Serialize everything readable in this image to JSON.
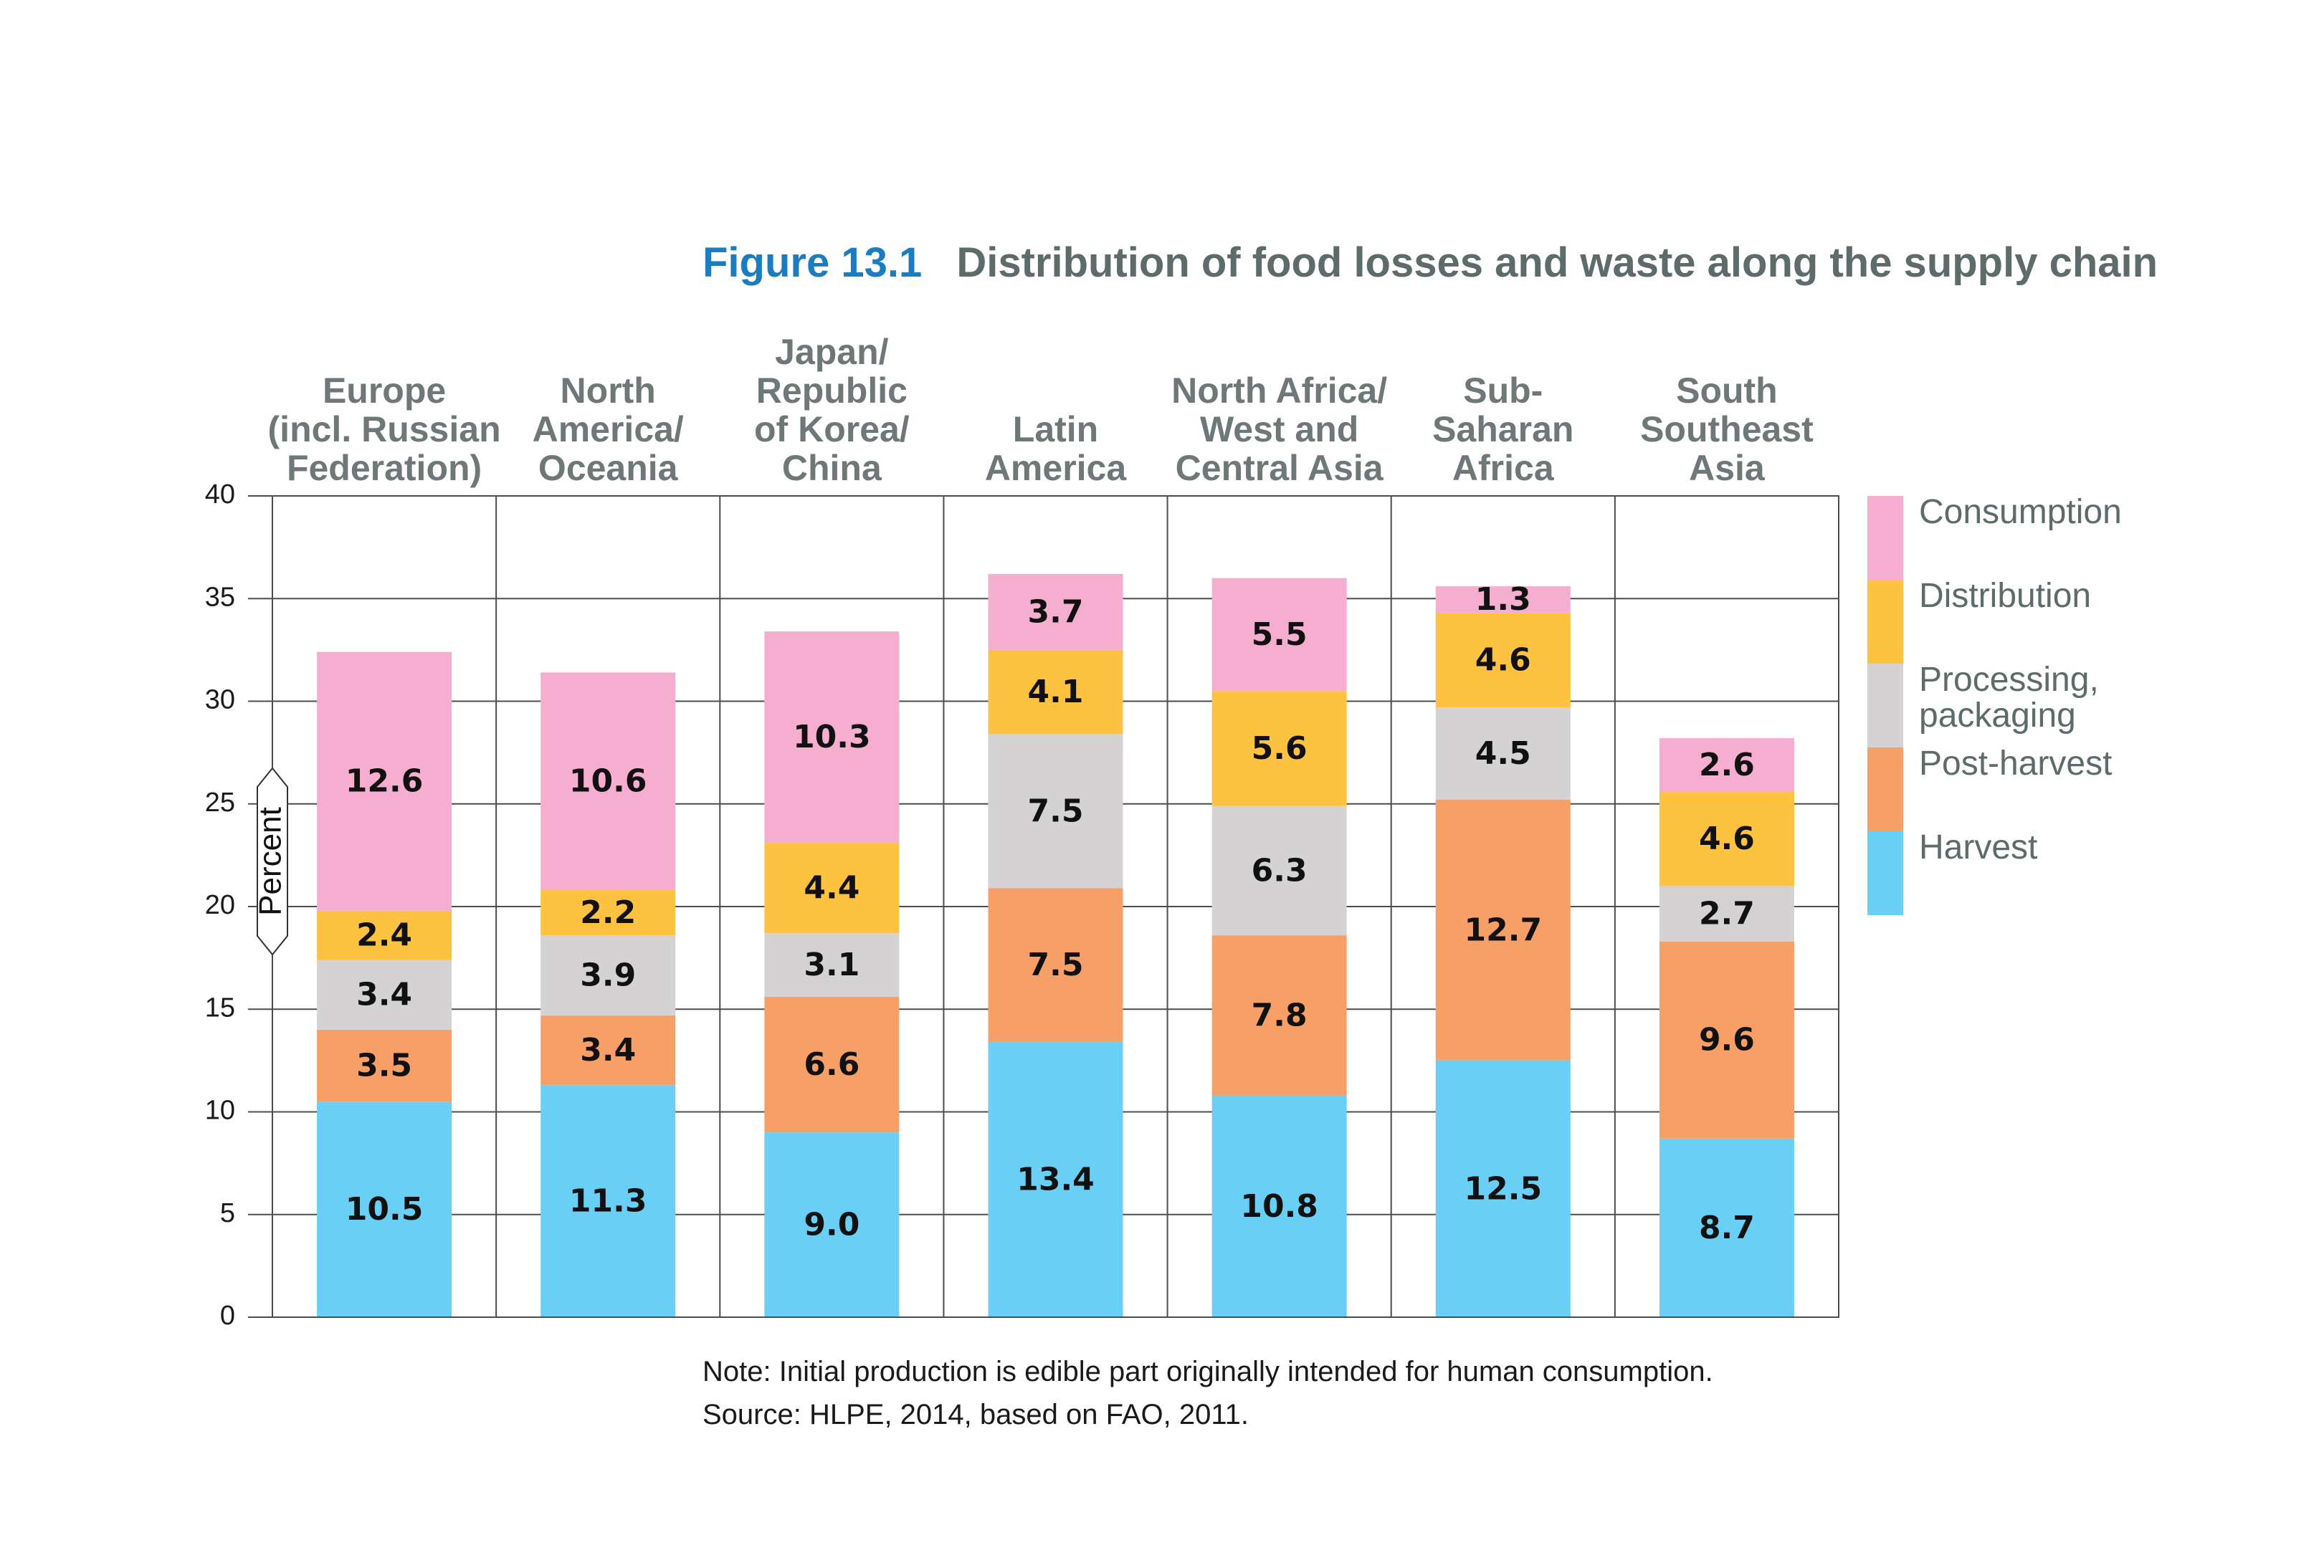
{
  "title": {
    "number": "Figure 13.1",
    "text": "Distribution of food losses and waste along the supply chain"
  },
  "note": "Note: Initial production is edible part originally intended for human consumption.",
  "source": "Source: HLPE, 2014, based on FAO, 2011.",
  "chart_data": {
    "type": "bar",
    "stacked": true,
    "title": "Distribution of food losses and waste along the supply chain",
    "ylabel": "Percent",
    "xlabel": "",
    "ylim": [
      0,
      40
    ],
    "yticks": [
      0,
      5,
      10,
      15,
      20,
      25,
      30,
      35,
      40
    ],
    "grid": true,
    "legend_position": "right",
    "categories": [
      [
        "Europe",
        "(incl. Russian",
        "Federation)"
      ],
      [
        "North",
        "America/",
        "Oceania"
      ],
      [
        "Japan/",
        "Republic",
        "of Korea/",
        "China"
      ],
      [
        "Latin",
        "America"
      ],
      [
        "North Africa/",
        "West and",
        "Central Asia"
      ],
      [
        "Sub-",
        "Saharan",
        "Africa"
      ],
      [
        "South",
        "Southeast",
        "Asia"
      ]
    ],
    "series": [
      {
        "name": "Harvest",
        "color": "#6acff4",
        "values": [
          10.5,
          11.3,
          9.0,
          13.4,
          10.8,
          12.5,
          8.7
        ],
        "labels": [
          "10.5",
          "11.3",
          "9.0",
          "13.4",
          "10.8",
          "12.5",
          "8.7"
        ]
      },
      {
        "name": "Post-harvest",
        "color": "#f6a068",
        "values": [
          3.5,
          3.4,
          6.6,
          7.5,
          7.8,
          12.7,
          9.6
        ],
        "labels": [
          "3.5",
          "3.4",
          "6.6",
          "7.5",
          "7.8",
          "12.7",
          "9.6"
        ]
      },
      {
        "name": "Processing, packaging",
        "legend_lines": [
          "Processing,",
          "packaging"
        ],
        "color": "#d4d2d3",
        "values": [
          3.4,
          3.9,
          3.1,
          7.5,
          6.3,
          4.5,
          2.7
        ],
        "labels": [
          "3.4",
          "3.9",
          "3.1",
          "7.5",
          "6.3",
          "4.5",
          "2.7"
        ]
      },
      {
        "name": "Distribution",
        "color": "#fcc240",
        "values": [
          2.4,
          2.2,
          4.4,
          4.1,
          5.6,
          4.6,
          4.6
        ],
        "labels": [
          "2.4",
          "2.2",
          "4.4",
          "4.1",
          "5.6",
          "4.6",
          "4.6"
        ]
      },
      {
        "name": "Consumption",
        "color": "#f5aecf",
        "values": [
          12.6,
          10.6,
          10.3,
          3.7,
          5.5,
          1.3,
          2.6
        ],
        "labels": [
          "12.6",
          "10.6",
          "10.3",
          "3.7",
          "5.5",
          "1.3",
          "2.6"
        ]
      }
    ],
    "legend_order": [
      "Consumption",
      "Distribution",
      "Processing, packaging",
      "Post-harvest",
      "Harvest"
    ]
  }
}
